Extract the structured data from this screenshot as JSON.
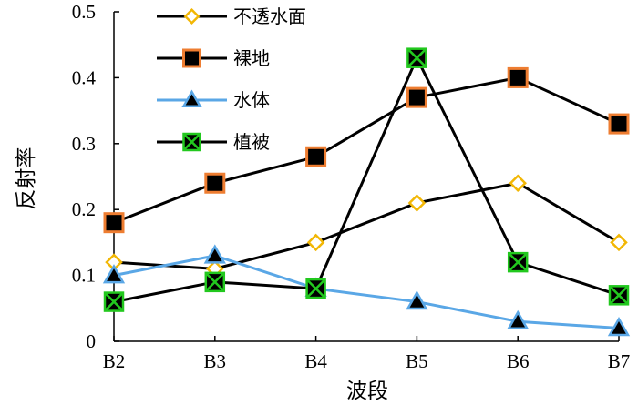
{
  "chart_data": {
    "type": "line",
    "xlabel": "波段",
    "ylabel": "反射率",
    "categories": [
      "B2",
      "B3",
      "B4",
      "B5",
      "B6",
      "B7"
    ],
    "yticks": [
      "0",
      "0.1",
      "0.2",
      "0.3",
      "0.4",
      "0.5"
    ],
    "ylim": [
      0,
      0.5
    ],
    "grid": false,
    "legend_position": "top-left",
    "series": [
      {
        "name": "不透水面",
        "values": [
          0.12,
          0.11,
          0.15,
          0.21,
          0.24,
          0.15
        ],
        "line_color": "#000000",
        "marker": "diamond",
        "marker_fill": "#ffffff",
        "marker_stroke": "#f2b705"
      },
      {
        "name": "裸地",
        "values": [
          0.18,
          0.24,
          0.28,
          0.37,
          0.4,
          0.33
        ],
        "line_color": "#000000",
        "marker": "square",
        "marker_fill": "#000000",
        "marker_stroke": "#ee7d31"
      },
      {
        "name": "水体",
        "values": [
          0.1,
          0.13,
          0.08,
          0.06,
          0.03,
          0.02
        ],
        "line_color": "#5aa7e6",
        "marker": "triangle",
        "marker_fill": "#000000",
        "marker_stroke": "#5aa7e6"
      },
      {
        "name": "植被",
        "values": [
          0.06,
          0.09,
          0.08,
          0.43,
          0.12,
          0.07
        ],
        "line_color": "#000000",
        "marker": "x-square",
        "marker_fill": "#000000",
        "marker_stroke": "#22c81e"
      }
    ]
  }
}
